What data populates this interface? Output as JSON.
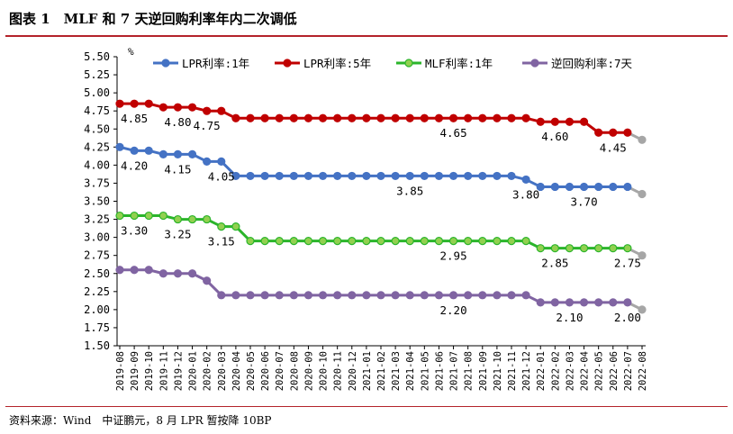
{
  "header": {
    "title": "图表 1　MLF 和 7 天逆回购利率年内二次调低"
  },
  "footer": {
    "source": "资料来源：Wind　中证鹏元，8 月 LPR 暂按降 10BP"
  },
  "chart_data": {
    "type": "line",
    "ylabel": "%",
    "ylim": [
      1.5,
      5.5
    ],
    "yticks": [
      "5.50",
      "5.25",
      "5.00",
      "4.75",
      "4.50",
      "4.25",
      "4.00",
      "3.75",
      "3.50",
      "3.25",
      "3.00",
      "2.75",
      "2.50",
      "2.25",
      "2.00",
      "1.75",
      "1.50"
    ],
    "legend_position": "top",
    "grid": false,
    "categories": [
      "2019-08",
      "2019-09",
      "2019-10",
      "2019-11",
      "2019-12",
      "2020-01",
      "2020-02",
      "2020-03",
      "2020-04",
      "2020-05",
      "2020-06",
      "2020-07",
      "2020-08",
      "2020-09",
      "2020-10",
      "2020-11",
      "2020-12",
      "2021-01",
      "2021-02",
      "2021-03",
      "2021-04",
      "2021-05",
      "2021-06",
      "2021-07",
      "2021-08",
      "2021-09",
      "2021-10",
      "2021-11",
      "2021-12",
      "2022-01",
      "2022-02",
      "2022-03",
      "2022-04",
      "2022-05",
      "2022-06",
      "2022-07",
      "2022-08"
    ],
    "series": [
      {
        "name": "LPR利率:1年",
        "color": "#4472c4",
        "fill": "#4472c4",
        "values": [
          4.25,
          4.2,
          4.2,
          4.15,
          4.15,
          4.15,
          4.05,
          4.05,
          3.85,
          3.85,
          3.85,
          3.85,
          3.85,
          3.85,
          3.85,
          3.85,
          3.85,
          3.85,
          3.85,
          3.85,
          3.85,
          3.85,
          3.85,
          3.85,
          3.85,
          3.85,
          3.85,
          3.85,
          3.8,
          3.7,
          3.7,
          3.7,
          3.7,
          3.7,
          3.7,
          3.7,
          3.6
        ]
      },
      {
        "name": "LPR利率:5年",
        "color": "#c00000",
        "fill": "#c00000",
        "values": [
          4.85,
          4.85,
          4.85,
          4.8,
          4.8,
          4.8,
          4.75,
          4.75,
          4.65,
          4.65,
          4.65,
          4.65,
          4.65,
          4.65,
          4.65,
          4.65,
          4.65,
          4.65,
          4.65,
          4.65,
          4.65,
          4.65,
          4.65,
          4.65,
          4.65,
          4.65,
          4.65,
          4.65,
          4.65,
          4.6,
          4.6,
          4.6,
          4.6,
          4.45,
          4.45,
          4.45,
          4.35
        ]
      },
      {
        "name": "MLF利率:1年",
        "color": "#2bb52b",
        "fill": "#92d050",
        "values": [
          3.3,
          3.3,
          3.3,
          3.3,
          3.25,
          3.25,
          3.25,
          3.15,
          3.15,
          2.95,
          2.95,
          2.95,
          2.95,
          2.95,
          2.95,
          2.95,
          2.95,
          2.95,
          2.95,
          2.95,
          2.95,
          2.95,
          2.95,
          2.95,
          2.95,
          2.95,
          2.95,
          2.95,
          2.95,
          2.85,
          2.85,
          2.85,
          2.85,
          2.85,
          2.85,
          2.85,
          2.75
        ]
      },
      {
        "name": "逆回购利率:7天",
        "color": "#8064a2",
        "fill": "#8064a2",
        "values": [
          2.55,
          2.55,
          2.55,
          2.5,
          2.5,
          2.5,
          2.4,
          2.2,
          2.2,
          2.2,
          2.2,
          2.2,
          2.2,
          2.2,
          2.2,
          2.2,
          2.2,
          2.2,
          2.2,
          2.2,
          2.2,
          2.2,
          2.2,
          2.2,
          2.2,
          2.2,
          2.2,
          2.2,
          2.2,
          2.1,
          2.1,
          2.1,
          2.1,
          2.1,
          2.1,
          2.1,
          2.0
        ]
      }
    ],
    "annotations": [
      {
        "text": "4.85",
        "series": 1,
        "index": 1
      },
      {
        "text": "4.80",
        "series": 1,
        "index": 4
      },
      {
        "text": "4.75",
        "series": 1,
        "index": 6
      },
      {
        "text": "4.65",
        "series": 1,
        "index": 23
      },
      {
        "text": "4.60",
        "series": 1,
        "index": 30
      },
      {
        "text": "4.45",
        "series": 1,
        "index": 34
      },
      {
        "text": "4.20",
        "series": 0,
        "index": 1
      },
      {
        "text": "4.15",
        "series": 0,
        "index": 4
      },
      {
        "text": "4.05",
        "series": 0,
        "index": 7
      },
      {
        "text": "3.85",
        "series": 0,
        "index": 20
      },
      {
        "text": "3.80",
        "series": 0,
        "index": 28
      },
      {
        "text": "3.70",
        "series": 0,
        "index": 32
      },
      {
        "text": "3.30",
        "series": 2,
        "index": 1
      },
      {
        "text": "3.25",
        "series": 2,
        "index": 4
      },
      {
        "text": "3.15",
        "series": 2,
        "index": 7
      },
      {
        "text": "2.95",
        "series": 2,
        "index": 23
      },
      {
        "text": "2.85",
        "series": 2,
        "index": 30
      },
      {
        "text": "2.75",
        "series": 2,
        "index": 35
      },
      {
        "text": "2.20",
        "series": 3,
        "index": 23
      },
      {
        "text": "2.10",
        "series": 3,
        "index": 31
      },
      {
        "text": "2.00",
        "series": 3,
        "index": 35
      }
    ]
  }
}
